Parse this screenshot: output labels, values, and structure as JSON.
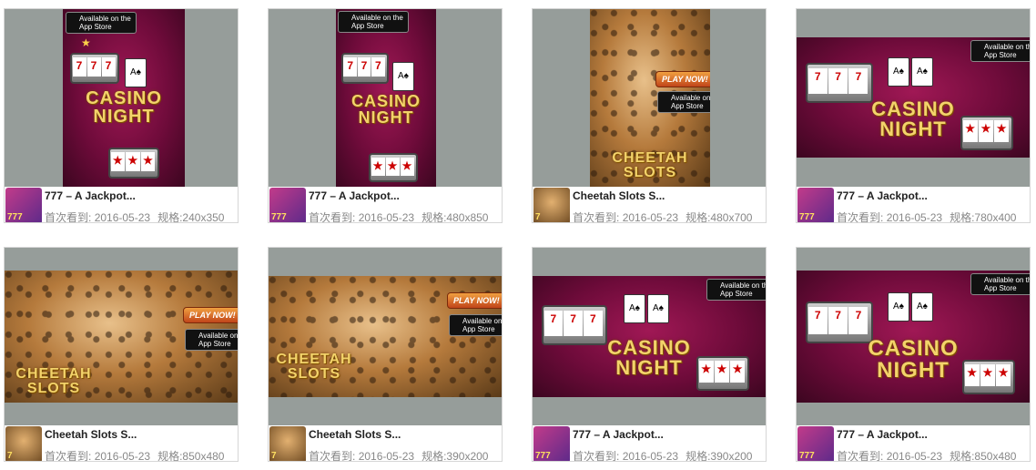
{
  "common": {
    "first_seen_label": "首次看到:",
    "size_label": "规格:",
    "appstore_line1": "Available on the",
    "appstore_line2": "App Store",
    "play_now": "PLAY NOW!",
    "casino_title_1": "CASINO",
    "casino_title_2": "NIGHT",
    "cheetah_title_1": "CHEETAH",
    "cheetah_title_2": "SLOTS"
  },
  "cards": [
    {
      "name": "777 – A Jackpot...",
      "date": "2016-05-23",
      "size": "240x350"
    },
    {
      "name": "777 – A Jackpot...",
      "date": "2016-05-23",
      "size": "480x850"
    },
    {
      "name": "Cheetah Slots S...",
      "date": "2016-05-23",
      "size": "480x700"
    },
    {
      "name": "777 – A Jackpot...",
      "date": "2016-05-23",
      "size": "780x400"
    },
    {
      "name": "Cheetah Slots S...",
      "date": "2016-05-23",
      "size": "850x480"
    },
    {
      "name": "Cheetah Slots S...",
      "date": "2016-05-23",
      "size": "390x200"
    },
    {
      "name": "777 – A Jackpot...",
      "date": "2016-05-23",
      "size": "390x200"
    },
    {
      "name": "777 – A Jackpot...",
      "date": "2016-05-23",
      "size": "850x480"
    }
  ]
}
